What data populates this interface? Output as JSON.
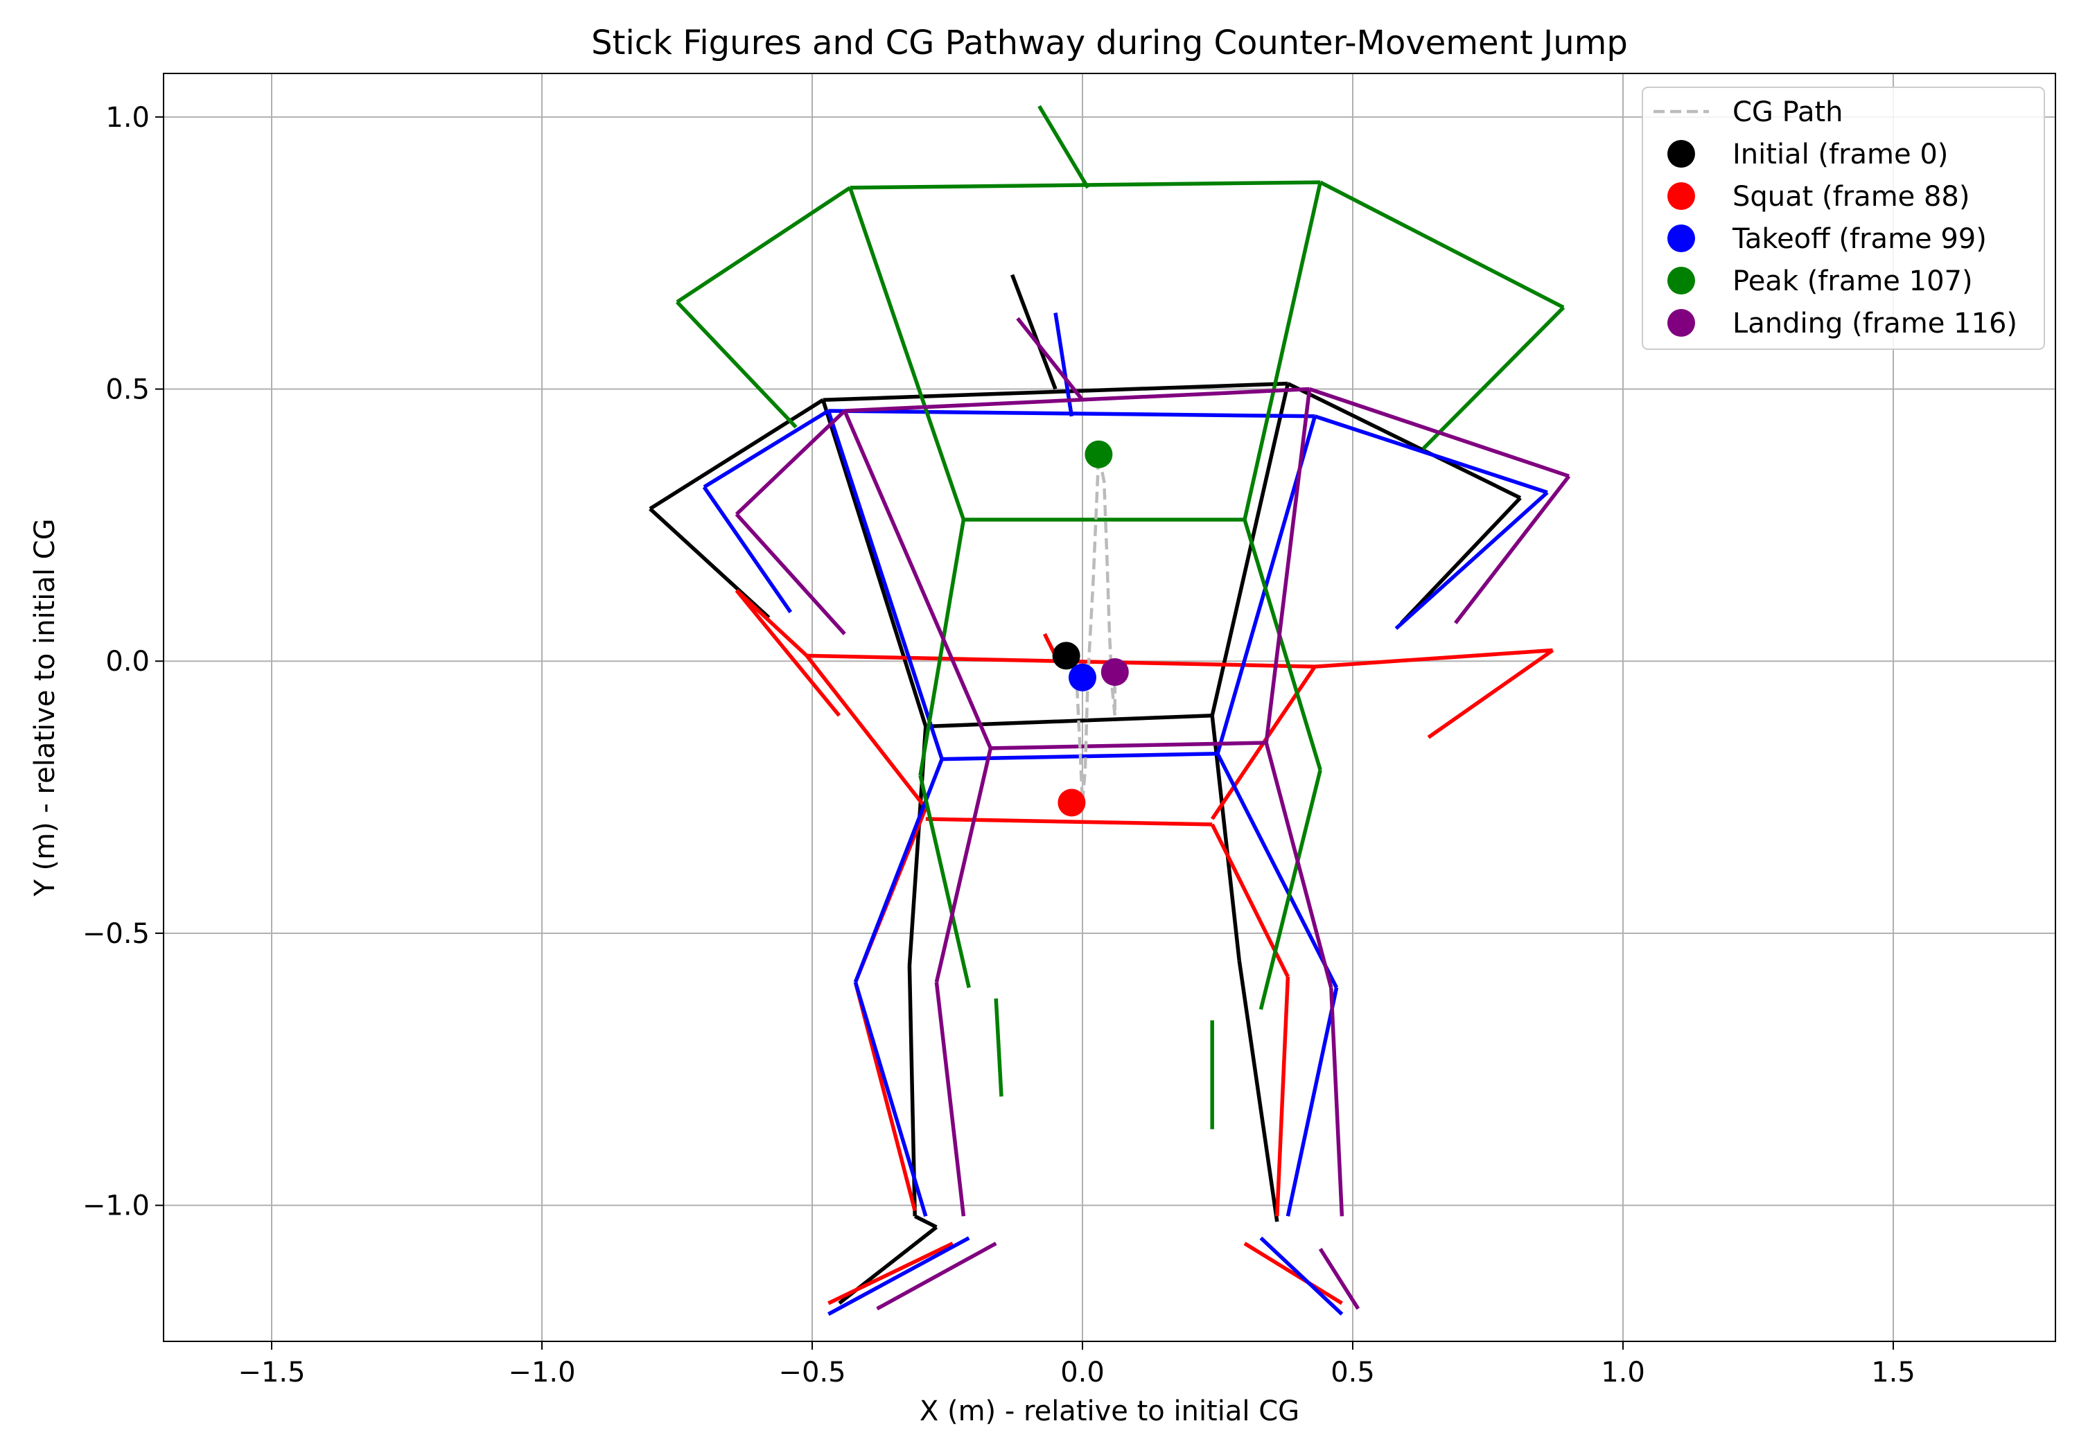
{
  "chart_data": {
    "type": "line",
    "title": "Stick Figures and CG Pathway during Counter-Movement Jump",
    "xlabel": "X (m) - relative to initial CG",
    "ylabel": "Y (m) - relative to initial CG",
    "xlim": [
      -1.7,
      1.8
    ],
    "ylim": [
      -1.25,
      1.08
    ],
    "xticks": [
      -1.5,
      -1.0,
      -0.5,
      0.0,
      0.5,
      1.0,
      1.5
    ],
    "xtick_labels": [
      "−1.5",
      "−1.0",
      "−0.5",
      "0.0",
      "0.5",
      "1.0",
      "1.5"
    ],
    "yticks": [
      -1.0,
      -0.5,
      0.0,
      0.5,
      1.0
    ],
    "ytick_labels": [
      "−1.0",
      "−0.5",
      "0.0",
      "0.5",
      "1.0"
    ],
    "grid": true,
    "legend_position": "upper right",
    "legend": [
      {
        "label": "CG Path",
        "style": "dashed-line",
        "color": "#bbbbbb"
      },
      {
        "label": "Initial (frame 0)",
        "style": "marker",
        "color": "#000000"
      },
      {
        "label": "Squat (frame 88)",
        "style": "marker",
        "color": "#ff0000"
      },
      {
        "label": "Takeoff (frame 99)",
        "style": "marker",
        "color": "#0000ff"
      },
      {
        "label": "Peak (frame 107)",
        "style": "marker",
        "color": "#008000"
      },
      {
        "label": "Landing (frame 116)",
        "style": "marker",
        "color": "#800080"
      }
    ],
    "cg_path": {
      "name": "CG Path",
      "color": "#bbbbbb",
      "x": [
        -0.03,
        -0.01,
        -0.005,
        0.0,
        0.005,
        0.01,
        0.02,
        0.03,
        0.04,
        0.045,
        0.05,
        0.055,
        0.06,
        0.06,
        0.055,
        0.05,
        0.06
      ],
      "y": [
        0.01,
        -0.05,
        -0.15,
        -0.26,
        -0.2,
        -0.03,
        0.15,
        0.38,
        0.33,
        0.2,
        0.05,
        -0.05,
        -0.1,
        -0.05,
        -0.02,
        -0.01,
        -0.02
      ]
    },
    "series": [
      {
        "name": "Initial (frame 0)",
        "color": "#000000",
        "cg": [
          -0.03,
          0.01
        ],
        "segments": [
          [
            [
              -0.13,
              0.71
            ],
            [
              -0.05,
              0.5
            ]
          ],
          [
            [
              -0.48,
              0.48
            ],
            [
              0.38,
              0.51
            ]
          ],
          [
            [
              -0.48,
              0.48
            ],
            [
              -0.8,
              0.28
            ]
          ],
          [
            [
              -0.8,
              0.28
            ],
            [
              -0.58,
              0.08
            ]
          ],
          [
            [
              0.38,
              0.51
            ],
            [
              0.81,
              0.3
            ]
          ],
          [
            [
              0.81,
              0.3
            ],
            [
              0.59,
              0.07
            ]
          ],
          [
            [
              -0.48,
              0.48
            ],
            [
              -0.29,
              -0.12
            ]
          ],
          [
            [
              0.38,
              0.51
            ],
            [
              0.24,
              -0.1
            ]
          ],
          [
            [
              -0.29,
              -0.12
            ],
            [
              0.24,
              -0.1
            ]
          ],
          [
            [
              -0.29,
              -0.12
            ],
            [
              -0.32,
              -0.56
            ]
          ],
          [
            [
              -0.32,
              -0.56
            ],
            [
              -0.31,
              -1.02
            ]
          ],
          [
            [
              -0.31,
              -1.02
            ],
            [
              -0.27,
              -1.04
            ]
          ],
          [
            [
              -0.27,
              -1.04
            ],
            [
              -0.45,
              -1.18
            ]
          ],
          [
            [
              0.24,
              -0.1
            ],
            [
              0.29,
              -0.55
            ]
          ],
          [
            [
              0.29,
              -0.55
            ],
            [
              0.36,
              -1.03
            ]
          ]
        ]
      },
      {
        "name": "Squat (frame 88)",
        "color": "#ff0000",
        "cg": [
          -0.02,
          -0.26
        ],
        "segments": [
          [
            [
              -0.07,
              0.05
            ],
            [
              -0.05,
              0.01
            ]
          ],
          [
            [
              -0.51,
              0.01
            ],
            [
              0.43,
              -0.01
            ]
          ],
          [
            [
              -0.51,
              0.01
            ],
            [
              -0.64,
              0.13
            ]
          ],
          [
            [
              -0.64,
              0.13
            ],
            [
              -0.45,
              -0.1
            ]
          ],
          [
            [
              0.43,
              -0.01
            ],
            [
              0.87,
              0.02
            ]
          ],
          [
            [
              0.87,
              0.02
            ],
            [
              0.64,
              -0.14
            ]
          ],
          [
            [
              -0.51,
              0.01
            ],
            [
              -0.29,
              -0.27
            ]
          ],
          [
            [
              0.43,
              -0.01
            ],
            [
              0.24,
              -0.29
            ]
          ],
          [
            [
              -0.29,
              -0.29
            ],
            [
              0.24,
              -0.3
            ]
          ],
          [
            [
              -0.29,
              -0.27
            ],
            [
              -0.42,
              -0.59
            ]
          ],
          [
            [
              -0.42,
              -0.59
            ],
            [
              -0.31,
              -1.01
            ]
          ],
          [
            [
              -0.24,
              -1.07
            ],
            [
              -0.47,
              -1.18
            ]
          ],
          [
            [
              0.24,
              -0.3
            ],
            [
              0.38,
              -0.58
            ]
          ],
          [
            [
              0.38,
              -0.58
            ],
            [
              0.36,
              -1.02
            ]
          ],
          [
            [
              0.3,
              -1.07
            ],
            [
              0.48,
              -1.18
            ]
          ]
        ]
      },
      {
        "name": "Takeoff (frame 99)",
        "color": "#0000ff",
        "cg": [
          0.0,
          -0.03
        ],
        "segments": [
          [
            [
              -0.05,
              0.64
            ],
            [
              -0.02,
              0.45
            ]
          ],
          [
            [
              -0.47,
              0.46
            ],
            [
              0.43,
              0.45
            ]
          ],
          [
            [
              -0.47,
              0.46
            ],
            [
              -0.7,
              0.32
            ]
          ],
          [
            [
              -0.7,
              0.32
            ],
            [
              -0.54,
              0.09
            ]
          ],
          [
            [
              0.43,
              0.45
            ],
            [
              0.86,
              0.31
            ]
          ],
          [
            [
              0.86,
              0.31
            ],
            [
              0.58,
              0.06
            ]
          ],
          [
            [
              -0.47,
              0.46
            ],
            [
              -0.26,
              -0.18
            ]
          ],
          [
            [
              0.43,
              0.45
            ],
            [
              0.25,
              -0.17
            ]
          ],
          [
            [
              -0.26,
              -0.18
            ],
            [
              0.25,
              -0.17
            ]
          ],
          [
            [
              -0.26,
              -0.18
            ],
            [
              -0.42,
              -0.59
            ]
          ],
          [
            [
              -0.42,
              -0.59
            ],
            [
              -0.29,
              -1.02
            ]
          ],
          [
            [
              -0.21,
              -1.06
            ],
            [
              -0.47,
              -1.2
            ]
          ],
          [
            [
              0.25,
              -0.17
            ],
            [
              0.47,
              -0.6
            ]
          ],
          [
            [
              0.47,
              -0.6
            ],
            [
              0.38,
              -1.02
            ]
          ],
          [
            [
              0.33,
              -1.06
            ],
            [
              0.48,
              -1.2
            ]
          ]
        ]
      },
      {
        "name": "Peak (frame 107)",
        "color": "#008000",
        "cg": [
          0.03,
          0.38
        ],
        "segments": [
          [
            [
              -0.08,
              1.02
            ],
            [
              0.01,
              0.87
            ]
          ],
          [
            [
              -0.43,
              0.87
            ],
            [
              0.44,
              0.88
            ]
          ],
          [
            [
              -0.43,
              0.87
            ],
            [
              -0.75,
              0.66
            ]
          ],
          [
            [
              -0.75,
              0.66
            ],
            [
              -0.53,
              0.43
            ]
          ],
          [
            [
              0.44,
              0.88
            ],
            [
              0.89,
              0.65
            ]
          ],
          [
            [
              0.89,
              0.65
            ],
            [
              0.63,
              0.39
            ]
          ],
          [
            [
              -0.43,
              0.87
            ],
            [
              -0.22,
              0.26
            ]
          ],
          [
            [
              0.44,
              0.88
            ],
            [
              0.3,
              0.26
            ]
          ],
          [
            [
              -0.22,
              0.26
            ],
            [
              0.3,
              0.26
            ]
          ],
          [
            [
              -0.22,
              0.26
            ],
            [
              -0.3,
              -0.21
            ]
          ],
          [
            [
              -0.3,
              -0.21
            ],
            [
              -0.21,
              -0.6
            ]
          ],
          [
            [
              -0.16,
              -0.62
            ],
            [
              -0.15,
              -0.8
            ]
          ],
          [
            [
              0.3,
              0.26
            ],
            [
              0.44,
              -0.2
            ]
          ],
          [
            [
              0.44,
              -0.2
            ],
            [
              0.33,
              -0.64
            ]
          ],
          [
            [
              0.24,
              -0.66
            ],
            [
              0.24,
              -0.86
            ]
          ]
        ]
      },
      {
        "name": "Landing (frame 116)",
        "color": "#800080",
        "cg": [
          0.06,
          -0.02
        ],
        "segments": [
          [
            [
              -0.12,
              0.63
            ],
            [
              0.0,
              0.48
            ]
          ],
          [
            [
              -0.44,
              0.46
            ],
            [
              0.42,
              0.5
            ]
          ],
          [
            [
              -0.44,
              0.46
            ],
            [
              -0.64,
              0.27
            ]
          ],
          [
            [
              -0.64,
              0.27
            ],
            [
              -0.44,
              0.05
            ]
          ],
          [
            [
              0.42,
              0.5
            ],
            [
              0.9,
              0.34
            ]
          ],
          [
            [
              0.9,
              0.34
            ],
            [
              0.69,
              0.07
            ]
          ],
          [
            [
              -0.44,
              0.46
            ],
            [
              -0.17,
              -0.16
            ]
          ],
          [
            [
              0.42,
              0.5
            ],
            [
              0.34,
              -0.15
            ]
          ],
          [
            [
              -0.17,
              -0.16
            ],
            [
              0.34,
              -0.15
            ]
          ],
          [
            [
              -0.17,
              -0.16
            ],
            [
              -0.27,
              -0.59
            ]
          ],
          [
            [
              -0.27,
              -0.59
            ],
            [
              -0.22,
              -1.02
            ]
          ],
          [
            [
              -0.16,
              -1.07
            ],
            [
              -0.38,
              -1.19
            ]
          ],
          [
            [
              0.34,
              -0.15
            ],
            [
              0.46,
              -0.6
            ]
          ],
          [
            [
              0.46,
              -0.6
            ],
            [
              0.48,
              -1.02
            ]
          ],
          [
            [
              0.44,
              -1.08
            ],
            [
              0.51,
              -1.19
            ]
          ]
        ]
      }
    ]
  }
}
